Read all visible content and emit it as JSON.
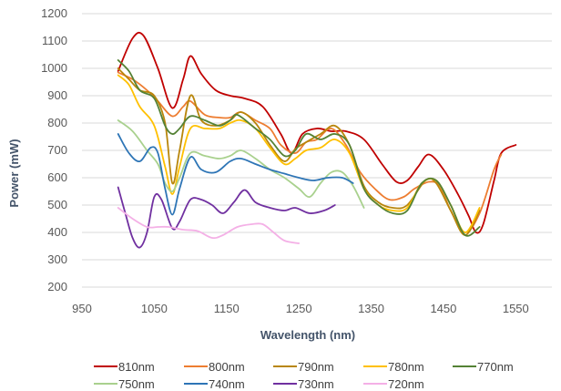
{
  "chart_data": {
    "type": "line",
    "xlabel": "Wavelength (nm)",
    "ylabel": "Power (mW)",
    "xlim": [
      950,
      1600
    ],
    "ylim": [
      200,
      1200
    ],
    "xticks": [
      950,
      1050,
      1150,
      1250,
      1350,
      1450,
      1550
    ],
    "yticks": [
      200,
      300,
      400,
      500,
      600,
      700,
      800,
      900,
      1000,
      1100,
      1200
    ],
    "grid": "horizontal",
    "legend_position": "bottom",
    "series": [
      {
        "name": "810nm",
        "color": "#c00000",
        "points": [
          [
            1000,
            990
          ],
          [
            1020,
            1110
          ],
          [
            1035,
            1120
          ],
          [
            1055,
            1000
          ],
          [
            1075,
            855
          ],
          [
            1090,
            960
          ],
          [
            1100,
            1045
          ],
          [
            1115,
            980
          ],
          [
            1135,
            920
          ],
          [
            1155,
            900
          ],
          [
            1175,
            890
          ],
          [
            1200,
            860
          ],
          [
            1225,
            760
          ],
          [
            1240,
            690
          ],
          [
            1255,
            760
          ],
          [
            1275,
            780
          ],
          [
            1295,
            770
          ],
          [
            1315,
            770
          ],
          [
            1340,
            740
          ],
          [
            1365,
            650
          ],
          [
            1385,
            585
          ],
          [
            1400,
            590
          ],
          [
            1415,
            640
          ],
          [
            1430,
            685
          ],
          [
            1450,
            630
          ],
          [
            1470,
            540
          ],
          [
            1485,
            460
          ],
          [
            1495,
            400
          ],
          [
            1505,
            430
          ],
          [
            1520,
            590
          ],
          [
            1530,
            690
          ],
          [
            1550,
            720
          ]
        ]
      },
      {
        "name": "800nm",
        "color": "#ed7d31",
        "points": [
          [
            1000,
            985
          ],
          [
            1020,
            960
          ],
          [
            1040,
            920
          ],
          [
            1055,
            880
          ],
          [
            1075,
            825
          ],
          [
            1090,
            860
          ],
          [
            1100,
            880
          ],
          [
            1120,
            830
          ],
          [
            1140,
            820
          ],
          [
            1155,
            820
          ],
          [
            1170,
            840
          ],
          [
            1190,
            810
          ],
          [
            1210,
            780
          ],
          [
            1225,
            720
          ],
          [
            1245,
            690
          ],
          [
            1260,
            730
          ],
          [
            1275,
            740
          ],
          [
            1295,
            780
          ],
          [
            1315,
            720
          ],
          [
            1335,
            620
          ],
          [
            1355,
            560
          ],
          [
            1375,
            520
          ],
          [
            1395,
            530
          ],
          [
            1410,
            560
          ],
          [
            1430,
            585
          ],
          [
            1445,
            570
          ],
          [
            1460,
            480
          ],
          [
            1480,
            400
          ],
          [
            1500,
            470
          ],
          [
            1520,
            630
          ],
          [
            1530,
            685
          ]
        ]
      },
      {
        "name": "790nm",
        "color": "#b8860b",
        "points": [
          [
            1000,
            1000
          ],
          [
            1015,
            960
          ],
          [
            1030,
            920
          ],
          [
            1050,
            900
          ],
          [
            1065,
            800
          ],
          [
            1075,
            580
          ],
          [
            1085,
            700
          ],
          [
            1100,
            900
          ],
          [
            1115,
            810
          ],
          [
            1135,
            790
          ],
          [
            1155,
            810
          ],
          [
            1170,
            840
          ],
          [
            1190,
            800
          ],
          [
            1210,
            720
          ],
          [
            1230,
            660
          ],
          [
            1245,
            705
          ],
          [
            1260,
            730
          ],
          [
            1280,
            760
          ],
          [
            1300,
            790
          ],
          [
            1320,
            720
          ],
          [
            1340,
            570
          ],
          [
            1360,
            510
          ],
          [
            1380,
            490
          ],
          [
            1400,
            500
          ],
          [
            1425,
            590
          ],
          [
            1440,
            580
          ],
          [
            1460,
            480
          ],
          [
            1480,
            390
          ],
          [
            1500,
            480
          ]
        ]
      },
      {
        "name": "780nm",
        "color": "#ffc000",
        "points": [
          [
            1000,
            975
          ],
          [
            1015,
            940
          ],
          [
            1030,
            860
          ],
          [
            1050,
            790
          ],
          [
            1065,
            640
          ],
          [
            1075,
            540
          ],
          [
            1085,
            640
          ],
          [
            1100,
            780
          ],
          [
            1120,
            780
          ],
          [
            1140,
            780
          ],
          [
            1155,
            800
          ],
          [
            1170,
            810
          ],
          [
            1190,
            780
          ],
          [
            1210,
            710
          ],
          [
            1230,
            650
          ],
          [
            1245,
            670
          ],
          [
            1260,
            700
          ],
          [
            1280,
            710
          ],
          [
            1300,
            740
          ],
          [
            1320,
            690
          ],
          [
            1340,
            560
          ],
          [
            1360,
            500
          ],
          [
            1380,
            480
          ],
          [
            1400,
            490
          ],
          [
            1420,
            580
          ],
          [
            1440,
            590
          ],
          [
            1460,
            500
          ],
          [
            1480,
            400
          ],
          [
            1500,
            490
          ]
        ]
      },
      {
        "name": "770nm",
        "color": "#548235",
        "points": [
          [
            1000,
            1030
          ],
          [
            1015,
            990
          ],
          [
            1030,
            920
          ],
          [
            1050,
            890
          ],
          [
            1065,
            790
          ],
          [
            1075,
            760
          ],
          [
            1085,
            780
          ],
          [
            1100,
            825
          ],
          [
            1120,
            810
          ],
          [
            1140,
            790
          ],
          [
            1155,
            810
          ],
          [
            1165,
            830
          ],
          [
            1190,
            780
          ],
          [
            1210,
            740
          ],
          [
            1230,
            680
          ],
          [
            1245,
            700
          ],
          [
            1260,
            760
          ],
          [
            1280,
            740
          ],
          [
            1300,
            760
          ],
          [
            1320,
            720
          ],
          [
            1340,
            560
          ],
          [
            1360,
            500
          ],
          [
            1380,
            470
          ],
          [
            1400,
            480
          ],
          [
            1420,
            580
          ],
          [
            1440,
            590
          ],
          [
            1460,
            500
          ],
          [
            1480,
            390
          ],
          [
            1500,
            420
          ]
        ]
      },
      {
        "name": "750nm",
        "color": "#a9d18e",
        "points": [
          [
            1000,
            810
          ],
          [
            1020,
            770
          ],
          [
            1040,
            700
          ],
          [
            1055,
            650
          ],
          [
            1065,
            580
          ],
          [
            1075,
            550
          ],
          [
            1085,
            600
          ],
          [
            1100,
            690
          ],
          [
            1120,
            680
          ],
          [
            1140,
            670
          ],
          [
            1155,
            680
          ],
          [
            1170,
            700
          ],
          [
            1190,
            670
          ],
          [
            1210,
            630
          ],
          [
            1230,
            600
          ],
          [
            1250,
            560
          ],
          [
            1265,
            530
          ],
          [
            1280,
            580
          ],
          [
            1295,
            620
          ],
          [
            1310,
            620
          ],
          [
            1325,
            570
          ],
          [
            1340,
            490
          ]
        ]
      },
      {
        "name": "740nm",
        "color": "#2e75b6",
        "points": [
          [
            1000,
            760
          ],
          [
            1015,
            690
          ],
          [
            1030,
            660
          ],
          [
            1045,
            710
          ],
          [
            1055,
            690
          ],
          [
            1065,
            560
          ],
          [
            1075,
            465
          ],
          [
            1085,
            560
          ],
          [
            1100,
            675
          ],
          [
            1115,
            630
          ],
          [
            1135,
            620
          ],
          [
            1155,
            660
          ],
          [
            1170,
            670
          ],
          [
            1190,
            650
          ],
          [
            1210,
            630
          ],
          [
            1230,
            615
          ],
          [
            1250,
            600
          ],
          [
            1270,
            590
          ],
          [
            1290,
            600
          ],
          [
            1310,
            600
          ],
          [
            1325,
            580
          ]
        ]
      },
      {
        "name": "730nm",
        "color": "#7030a0",
        "points": [
          [
            1000,
            565
          ],
          [
            1010,
            470
          ],
          [
            1020,
            380
          ],
          [
            1030,
            345
          ],
          [
            1040,
            400
          ],
          [
            1050,
            530
          ],
          [
            1060,
            520
          ],
          [
            1075,
            415
          ],
          [
            1085,
            440
          ],
          [
            1100,
            520
          ],
          [
            1115,
            520
          ],
          [
            1130,
            500
          ],
          [
            1145,
            470
          ],
          [
            1160,
            510
          ],
          [
            1175,
            555
          ],
          [
            1190,
            510
          ],
          [
            1210,
            490
          ],
          [
            1230,
            480
          ],
          [
            1245,
            490
          ],
          [
            1265,
            470
          ],
          [
            1285,
            480
          ],
          [
            1300,
            500
          ]
        ]
      },
      {
        "name": "720nm",
        "color": "#f4b0e6",
        "points": [
          [
            1000,
            490
          ],
          [
            1020,
            450
          ],
          [
            1040,
            420
          ],
          [
            1055,
            420
          ],
          [
            1070,
            420
          ],
          [
            1090,
            410
          ],
          [
            1110,
            405
          ],
          [
            1130,
            380
          ],
          [
            1145,
            390
          ],
          [
            1165,
            420
          ],
          [
            1185,
            430
          ],
          [
            1200,
            430
          ],
          [
            1215,
            400
          ],
          [
            1230,
            370
          ],
          [
            1250,
            360
          ]
        ]
      }
    ]
  }
}
